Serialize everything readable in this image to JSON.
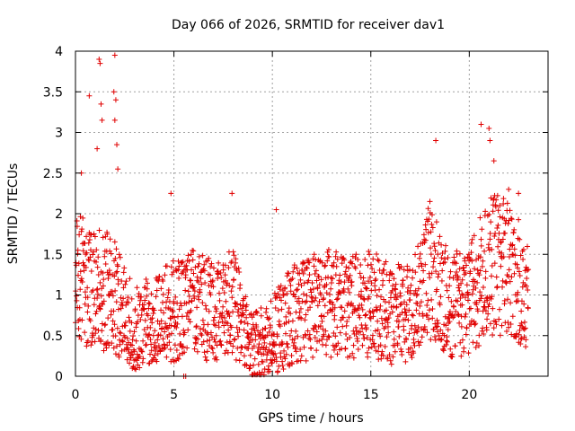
{
  "chart_data": {
    "type": "scatter",
    "title": "Day 066 of 2026, SRMTID for receiver dav1",
    "xlabel": "GPS time / hours",
    "ylabel": "SRMTID / TECUs",
    "xlim": [
      0,
      24
    ],
    "ylim": [
      0,
      4
    ],
    "x_ticks": [
      0,
      5,
      10,
      15,
      20
    ],
    "x_tick_labels": [
      "0",
      "5",
      "10",
      "15",
      "20"
    ],
    "y_ticks": [
      0,
      0.5,
      1,
      1.5,
      2,
      2.5,
      3,
      3.5,
      4
    ],
    "y_tick_labels": [
      "0",
      "0.5",
      "1",
      "1.5",
      "2",
      "2.5",
      "3",
      "3.5",
      "4"
    ],
    "grid": true,
    "marker": "plus",
    "marker_color": "#e00000",
    "x_range_of_data": [
      0,
      23
    ],
    "sample_interval_hours": 0.0125,
    "notable_points": [
      {
        "x": 0.3,
        "y": 2.5
      },
      {
        "x": 1.2,
        "y": 3.9
      },
      {
        "x": 1.25,
        "y": 3.85
      },
      {
        "x": 1.3,
        "y": 3.35
      },
      {
        "x": 1.35,
        "y": 3.15
      },
      {
        "x": 1.1,
        "y": 2.8
      },
      {
        "x": 0.7,
        "y": 3.45
      },
      {
        "x": 2.0,
        "y": 3.95
      },
      {
        "x": 1.95,
        "y": 3.5
      },
      {
        "x": 2.05,
        "y": 3.4
      },
      {
        "x": 2.0,
        "y": 3.15
      },
      {
        "x": 2.1,
        "y": 2.85
      },
      {
        "x": 2.15,
        "y": 2.55
      },
      {
        "x": 4.85,
        "y": 2.25
      },
      {
        "x": 7.95,
        "y": 2.25
      },
      {
        "x": 10.2,
        "y": 2.05
      },
      {
        "x": 18.3,
        "y": 2.9
      },
      {
        "x": 20.6,
        "y": 3.1
      },
      {
        "x": 21.0,
        "y": 3.05
      },
      {
        "x": 21.05,
        "y": 2.9
      },
      {
        "x": 21.25,
        "y": 2.65
      },
      {
        "x": 22.0,
        "y": 2.3
      },
      {
        "x": 22.5,
        "y": 2.25
      },
      {
        "x": 5.5,
        "y": 0.0
      },
      {
        "x": 5.6,
        "y": 0.0
      }
    ],
    "series_profile_hours": [
      0,
      1,
      2,
      3,
      4,
      5,
      6,
      7,
      8,
      9,
      10,
      11,
      12,
      13,
      14,
      15,
      16,
      17,
      18,
      19,
      20,
      21,
      22,
      23
    ],
    "series_profile_mean": [
      1.2,
      1.1,
      1.0,
      0.55,
      0.7,
      0.8,
      0.9,
      0.8,
      0.9,
      0.35,
      0.5,
      0.75,
      0.85,
      0.9,
      0.9,
      0.9,
      0.75,
      0.8,
      1.3,
      0.9,
      0.9,
      1.4,
      1.3,
      1.0
    ]
  }
}
